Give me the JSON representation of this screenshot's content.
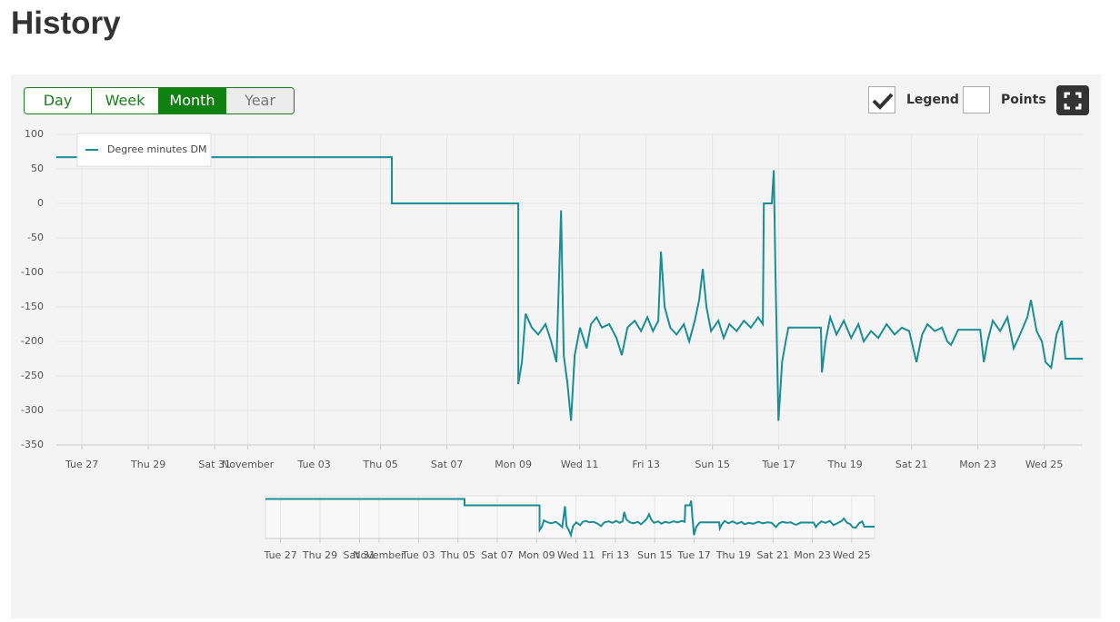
{
  "header": {
    "title": "History"
  },
  "range_buttons": [
    {
      "label": "Day",
      "active": false
    },
    {
      "label": "Week",
      "active": false
    },
    {
      "label": "Month",
      "active": true
    },
    {
      "label": "Year",
      "active": false
    }
  ],
  "toggles": [
    {
      "label": "Legend",
      "checked": true
    },
    {
      "label": "Points",
      "checked": false
    }
  ],
  "chart_data": {
    "type": "line",
    "grid": true,
    "series": [
      {
        "name": "Degree minutes DM",
        "color": "#1b8e95",
        "x": [
          -0.77,
          9.34,
          9.34,
          13.15,
          13.15,
          13.26,
          13.37,
          13.56,
          13.75,
          13.97,
          14.14,
          14.3,
          14.44,
          14.52,
          14.63,
          14.74,
          14.85,
          15.01,
          15.21,
          15.34,
          15.51,
          15.67,
          15.89,
          16.11,
          16.27,
          16.44,
          16.66,
          16.85,
          17.04,
          17.21,
          17.37,
          17.45,
          17.56,
          17.73,
          17.92,
          18.14,
          18.3,
          18.47,
          18.6,
          18.71,
          18.82,
          18.96,
          19.18,
          19.34,
          19.51,
          19.73,
          19.95,
          20.16,
          20.38,
          20.52,
          20.55,
          20.79,
          20.85,
          20.9,
          20.99,
          21.1,
          21.21,
          21.29,
          22.27,
          22.3,
          22.41,
          22.55,
          22.74,
          22.96,
          23.18,
          23.4,
          23.56,
          23.78,
          24.0,
          24.25,
          24.49,
          24.71,
          24.93,
          25.15,
          25.32,
          25.48,
          25.7,
          25.92,
          26.08,
          26.19,
          26.41,
          27.07,
          27.18,
          27.29,
          27.45,
          27.67,
          27.89,
          28.08,
          28.27,
          28.49,
          28.6,
          28.77,
          28.93,
          29.04,
          29.21,
          29.37,
          29.53,
          29.64,
          30.16
        ],
        "values": [
          67,
          67,
          0,
          0,
          -262,
          -230,
          -160,
          -180,
          -190,
          -175,
          -200,
          -230,
          -10,
          -220,
          -260,
          -315,
          -220,
          -180,
          -210,
          -175,
          -165,
          -180,
          -175,
          -195,
          -220,
          -180,
          -170,
          -185,
          -165,
          -185,
          -170,
          -70,
          -150,
          -180,
          -190,
          -175,
          -200,
          -170,
          -140,
          -95,
          -150,
          -185,
          -170,
          -195,
          -175,
          -185,
          -170,
          -180,
          -165,
          -175,
          0,
          0,
          48,
          -100,
          -315,
          -230,
          -200,
          -180,
          -180,
          -245,
          -200,
          -165,
          -190,
          -170,
          -195,
          -175,
          -200,
          -185,
          -195,
          -175,
          -190,
          -180,
          -185,
          -230,
          -190,
          -175,
          -185,
          -180,
          -200,
          -205,
          -183,
          -183,
          -230,
          -200,
          -170,
          -185,
          -165,
          -210,
          -190,
          -165,
          -140,
          -185,
          -200,
          -230,
          -238,
          -190,
          -170,
          -225,
          -225
        ]
      }
    ],
    "xlim": [
      -0.77,
      30.16
    ],
    "xticks": [
      {
        "value": 0,
        "label": "Tue 27"
      },
      {
        "value": 2,
        "label": "Thu 29"
      },
      {
        "value": 4,
        "label": "Sat 31"
      },
      {
        "value": 5,
        "label": "November"
      },
      {
        "value": 7,
        "label": "Tue 03"
      },
      {
        "value": 9,
        "label": "Thu 05"
      },
      {
        "value": 11,
        "label": "Sat 07"
      },
      {
        "value": 13,
        "label": "Mon 09"
      },
      {
        "value": 15,
        "label": "Wed 11"
      },
      {
        "value": 17,
        "label": "Fri 13"
      },
      {
        "value": 19,
        "label": "Sun 15"
      },
      {
        "value": 21,
        "label": "Tue 17"
      },
      {
        "value": 23,
        "label": "Thu 19"
      },
      {
        "value": 25,
        "label": "Sat 21"
      },
      {
        "value": 27,
        "label": "Mon 23"
      },
      {
        "value": 29,
        "label": "Wed 25"
      }
    ],
    "ylim": [
      -350,
      100
    ],
    "yticks": [
      100,
      50,
      0,
      -50,
      -100,
      -150,
      -200,
      -250,
      -300,
      -350
    ]
  }
}
